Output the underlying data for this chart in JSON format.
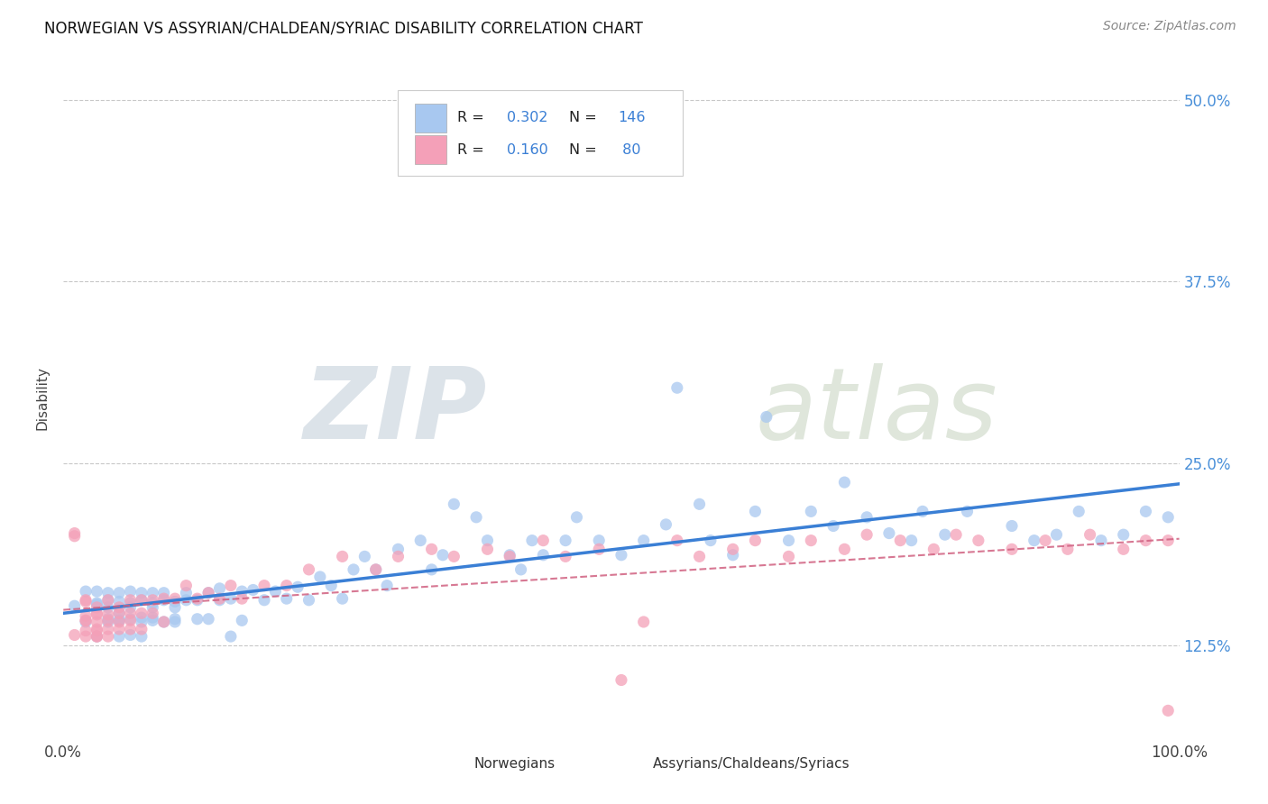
{
  "title": "NORWEGIAN VS ASSYRIAN/CHALDEAN/SYRIAC DISABILITY CORRELATION CHART",
  "source": "Source: ZipAtlas.com",
  "ylabel": "Disability",
  "xlim": [
    0,
    1.0
  ],
  "ylim": [
    0.06,
    0.53
  ],
  "ytick_values": [
    0.125,
    0.25,
    0.375,
    0.5
  ],
  "ytick_labels": [
    "12.5%",
    "25.0%",
    "37.5%",
    "50.0%"
  ],
  "legend_R_norwegian": "0.302",
  "legend_N_norwegian": "146",
  "legend_R_assyrian": "0.160",
  "legend_N_assyrian": "80",
  "norwegian_color": "#a8c8f0",
  "assyrian_color": "#f4a0b8",
  "trendline_norwegian_color": "#3a7fd5",
  "trendline_assyrian_color": "#d06080",
  "background_color": "#ffffff",
  "grid_color": "#c8c8c8",
  "watermark": "ZIPatlas",
  "nor_x": [
    0.01,
    0.02,
    0.02,
    0.03,
    0.03,
    0.03,
    0.03,
    0.04,
    0.04,
    0.04,
    0.04,
    0.04,
    0.05,
    0.05,
    0.05,
    0.05,
    0.05,
    0.05,
    0.06,
    0.06,
    0.06,
    0.06,
    0.06,
    0.07,
    0.07,
    0.07,
    0.07,
    0.07,
    0.08,
    0.08,
    0.08,
    0.08,
    0.08,
    0.09,
    0.09,
    0.09,
    0.1,
    0.1,
    0.1,
    0.1,
    0.11,
    0.11,
    0.12,
    0.12,
    0.13,
    0.13,
    0.14,
    0.14,
    0.15,
    0.15,
    0.16,
    0.16,
    0.17,
    0.18,
    0.19,
    0.2,
    0.21,
    0.22,
    0.23,
    0.24,
    0.25,
    0.26,
    0.27,
    0.28,
    0.29,
    0.3,
    0.32,
    0.33,
    0.34,
    0.35,
    0.37,
    0.38,
    0.4,
    0.41,
    0.42,
    0.43,
    0.45,
    0.46,
    0.48,
    0.5,
    0.52,
    0.54,
    0.55,
    0.57,
    0.58,
    0.6,
    0.62,
    0.63,
    0.65,
    0.67,
    0.69,
    0.7,
    0.72,
    0.74,
    0.76,
    0.77,
    0.79,
    0.81,
    0.85,
    0.87,
    0.89,
    0.91,
    0.93,
    0.95,
    0.97,
    0.99
  ],
  "nor_y": [
    0.152,
    0.141,
    0.162,
    0.131,
    0.153,
    0.162,
    0.154,
    0.143,
    0.151,
    0.156,
    0.141,
    0.161,
    0.142,
    0.147,
    0.155,
    0.161,
    0.131,
    0.142,
    0.143,
    0.151,
    0.154,
    0.162,
    0.132,
    0.141,
    0.156,
    0.161,
    0.144,
    0.131,
    0.142,
    0.151,
    0.154,
    0.161,
    0.144,
    0.141,
    0.156,
    0.161,
    0.151,
    0.155,
    0.143,
    0.141,
    0.161,
    0.156,
    0.143,
    0.156,
    0.161,
    0.143,
    0.156,
    0.164,
    0.131,
    0.157,
    0.162,
    0.142,
    0.163,
    0.156,
    0.162,
    0.157,
    0.165,
    0.156,
    0.172,
    0.166,
    0.157,
    0.177,
    0.186,
    0.177,
    0.166,
    0.191,
    0.197,
    0.177,
    0.187,
    0.222,
    0.213,
    0.197,
    0.187,
    0.177,
    0.197,
    0.187,
    0.197,
    0.213,
    0.197,
    0.187,
    0.197,
    0.208,
    0.302,
    0.222,
    0.197,
    0.187,
    0.217,
    0.282,
    0.197,
    0.217,
    0.207,
    0.237,
    0.213,
    0.202,
    0.197,
    0.217,
    0.201,
    0.217,
    0.207,
    0.197,
    0.201,
    0.217,
    0.197,
    0.201,
    0.217,
    0.213
  ],
  "ass_x": [
    0.01,
    0.01,
    0.01,
    0.02,
    0.02,
    0.02,
    0.02,
    0.02,
    0.02,
    0.02,
    0.03,
    0.03,
    0.03,
    0.03,
    0.03,
    0.03,
    0.03,
    0.03,
    0.04,
    0.04,
    0.04,
    0.04,
    0.04,
    0.05,
    0.05,
    0.05,
    0.05,
    0.06,
    0.06,
    0.06,
    0.06,
    0.07,
    0.07,
    0.07,
    0.08,
    0.08,
    0.09,
    0.09,
    0.1,
    0.11,
    0.12,
    0.13,
    0.14,
    0.15,
    0.16,
    0.18,
    0.2,
    0.22,
    0.25,
    0.28,
    0.3,
    0.33,
    0.35,
    0.38,
    0.4,
    0.43,
    0.45,
    0.48,
    0.5,
    0.52,
    0.55,
    0.57,
    0.6,
    0.62,
    0.65,
    0.67,
    0.7,
    0.72,
    0.75,
    0.78,
    0.8,
    0.82,
    0.85,
    0.88,
    0.9,
    0.92,
    0.95,
    0.97,
    0.99,
    0.99
  ],
  "ass_y": [
    0.202,
    0.132,
    0.2,
    0.155,
    0.145,
    0.135,
    0.142,
    0.131,
    0.156,
    0.142,
    0.135,
    0.131,
    0.146,
    0.141,
    0.151,
    0.147,
    0.136,
    0.131,
    0.146,
    0.142,
    0.136,
    0.156,
    0.131,
    0.141,
    0.151,
    0.147,
    0.136,
    0.142,
    0.156,
    0.147,
    0.136,
    0.156,
    0.147,
    0.136,
    0.156,
    0.147,
    0.157,
    0.141,
    0.157,
    0.166,
    0.157,
    0.161,
    0.157,
    0.166,
    0.157,
    0.166,
    0.166,
    0.177,
    0.186,
    0.177,
    0.186,
    0.191,
    0.186,
    0.191,
    0.186,
    0.197,
    0.186,
    0.191,
    0.101,
    0.141,
    0.197,
    0.186,
    0.191,
    0.197,
    0.186,
    0.197,
    0.191,
    0.201,
    0.197,
    0.191,
    0.201,
    0.197,
    0.191,
    0.197,
    0.191,
    0.201,
    0.191,
    0.197,
    0.08,
    0.197
  ]
}
